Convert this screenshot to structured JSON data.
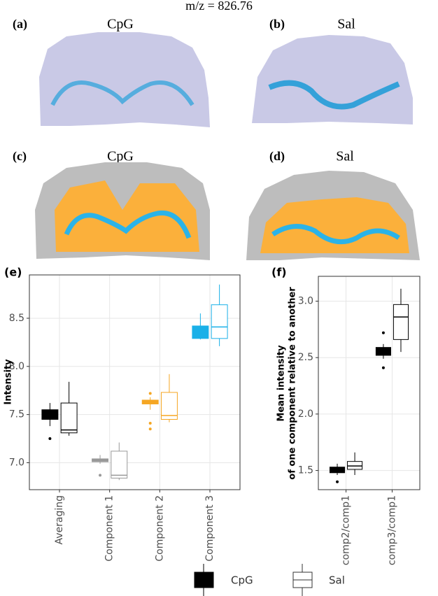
{
  "figure": {
    "title": "m/z = 826.76",
    "panels": [
      {
        "label": "(a)",
        "title": "CpG"
      },
      {
        "label": "(b)",
        "title": "Sal"
      },
      {
        "label": "(c)",
        "title": "CpG"
      },
      {
        "label": "(d)",
        "title": "Sal"
      },
      {
        "label": "(e)"
      },
      {
        "label": "(f)"
      }
    ]
  },
  "chart_data": [
    {
      "type": "box",
      "y_label": "Intensity",
      "categories": [
        "Averaging",
        "Component 1",
        "Component 2",
        "Component 3"
      ],
      "colors": [
        "#000000",
        "#999999",
        "#f5a623",
        "#1ab0e8"
      ],
      "ylim": [
        6.72,
        8.95
      ],
      "yticks": [
        {
          "value": 7,
          "label": "7.0"
        },
        7.5,
        {
          "value": 8,
          "label": "8.0"
        },
        8.5
      ],
      "grid": true,
      "series": [
        {
          "name": "CpG",
          "filled": true,
          "boxes": [
            {
              "min": 7.38,
              "q1": 7.45,
              "median": 7.5,
              "q3": 7.55,
              "max": 7.62,
              "outliers": [
                7.25
              ]
            },
            {
              "min": 6.99,
              "q1": 7.01,
              "median": 7.03,
              "q3": 7.04,
              "max": 7.08,
              "outliers": [
                6.87
              ]
            },
            {
              "min": 7.55,
              "q1": 7.61,
              "median": 7.63,
              "q3": 7.65,
              "max": 7.68,
              "outliers": [
                7.72,
                7.41,
                7.35
              ]
            },
            {
              "min": 8.28,
              "q1": 8.29,
              "median": 8.35,
              "q3": 8.42,
              "max": 8.55,
              "outliers": []
            }
          ]
        },
        {
          "name": "Sal",
          "filled": false,
          "boxes": [
            {
              "min": 7.28,
              "q1": 7.31,
              "median": 7.34,
              "q3": 7.62,
              "max": 7.84,
              "outliers": []
            },
            {
              "min": 6.82,
              "q1": 6.84,
              "median": 6.87,
              "q3": 7.12,
              "max": 7.21,
              "outliers": []
            },
            {
              "min": 7.42,
              "q1": 7.45,
              "median": 7.49,
              "q3": 7.73,
              "max": 7.92,
              "outliers": []
            },
            {
              "min": 8.21,
              "q1": 8.29,
              "median": 8.41,
              "q3": 8.64,
              "max": 8.85,
              "outliers": []
            }
          ]
        }
      ]
    },
    {
      "type": "box",
      "y_label": [
        "Mean intensity",
        "of one component relative to another"
      ],
      "categories": [
        "comp2/comp1",
        "comp3/comp1"
      ],
      "colors": [
        "#000000",
        "#000000"
      ],
      "ylim": [
        1.33,
        3.22
      ],
      "yticks": [
        1.5,
        {
          "value": 2,
          "label": "2.0"
        },
        2.5,
        {
          "value": 3,
          "label": "3.0"
        }
      ],
      "grid": true,
      "series": [
        {
          "name": "CpG",
          "filled": true,
          "boxes": [
            {
              "min": 1.46,
              "q1": 1.48,
              "median": 1.51,
              "q3": 1.53,
              "max": 1.56,
              "outliers": [
                1.4
              ]
            },
            {
              "min": 2.49,
              "q1": 2.52,
              "median": 2.56,
              "q3": 2.59,
              "max": 2.62,
              "outliers": [
                2.72,
                2.41
              ]
            }
          ]
        },
        {
          "name": "Sal",
          "filled": false,
          "boxes": [
            {
              "min": 1.46,
              "q1": 1.51,
              "median": 1.54,
              "q3": 1.58,
              "max": 1.66,
              "outliers": []
            },
            {
              "min": 2.55,
              "q1": 2.66,
              "median": 2.86,
              "q3": 2.97,
              "max": 3.11,
              "outliers": []
            }
          ]
        }
      ]
    }
  ]
}
